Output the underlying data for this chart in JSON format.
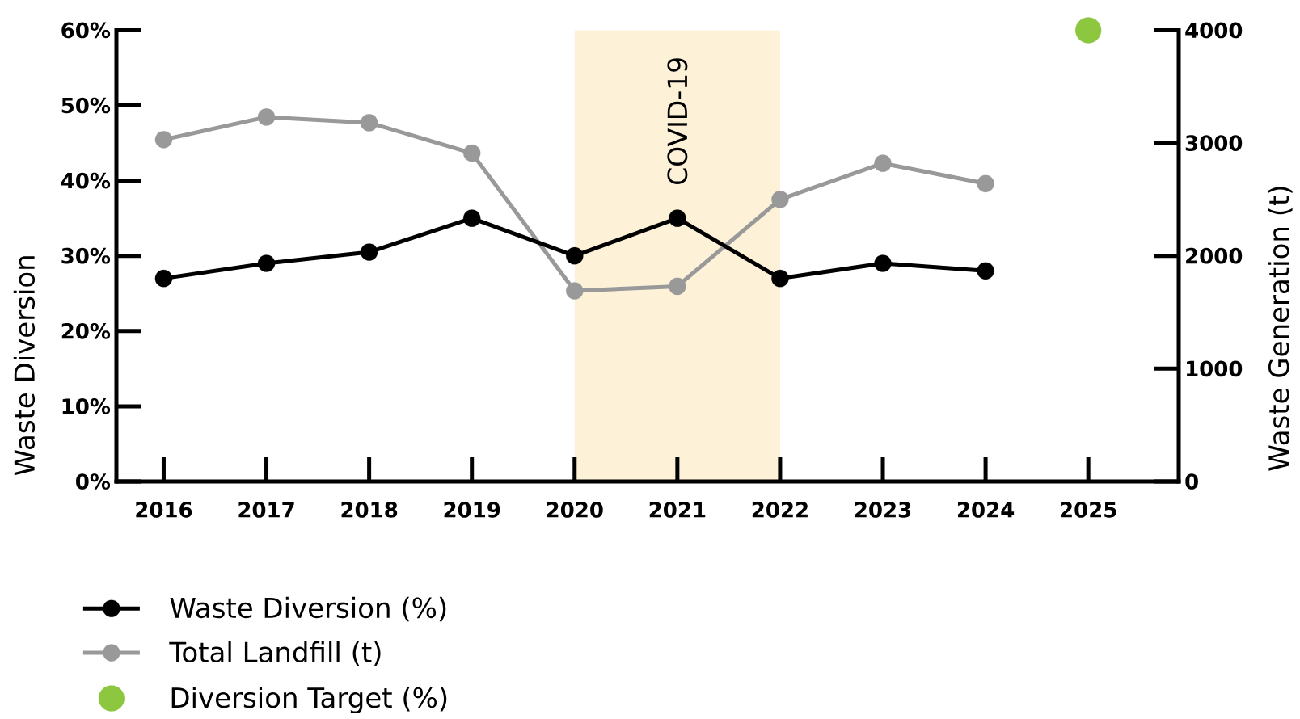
{
  "chart_data": {
    "type": "line",
    "ylabel": "Waste Diversion",
    "y2label": "Waste Generation (t)",
    "categories": [
      "2016",
      "2017",
      "2018",
      "2019",
      "2020",
      "2021",
      "2022",
      "2023",
      "2024",
      "2025"
    ],
    "series": [
      {
        "name": "Waste Diversion (%)",
        "color": "#000000",
        "values": [
          27,
          29,
          30.5,
          35,
          30,
          35,
          27,
          29,
          28,
          null
        ]
      },
      {
        "name": "Total Landfill (t)",
        "color": "#999999",
        "axis": "y2",
        "values": [
          3030,
          3230,
          3180,
          2910,
          1690,
          1730,
          2500,
          2820,
          2640,
          null
        ]
      },
      {
        "name": "Diversion Target (%)",
        "type": "scatter",
        "color": "#8dc63f",
        "values": [
          null,
          null,
          null,
          null,
          null,
          null,
          null,
          null,
          null,
          60
        ]
      }
    ],
    "ylim": [
      0,
      60
    ],
    "yticks": [
      {
        "value": 0,
        "label": "0%"
      },
      {
        "value": 10,
        "label": "10%"
      },
      {
        "value": 20,
        "label": "20%"
      },
      {
        "value": 30,
        "label": "30%"
      },
      {
        "value": 40,
        "label": "40%"
      },
      {
        "value": 50,
        "label": "50%"
      },
      {
        "value": 60,
        "label": "60%"
      }
    ],
    "y2lim": [
      0,
      4000
    ],
    "y2ticks": [
      0,
      1000,
      2000,
      3000,
      4000
    ],
    "bands": [
      {
        "axis": "x",
        "from": "2020",
        "to": "2022",
        "label": "COVID-19",
        "color": "#fdf1d8"
      }
    ],
    "legend": "bottom",
    "marker": "circle"
  }
}
